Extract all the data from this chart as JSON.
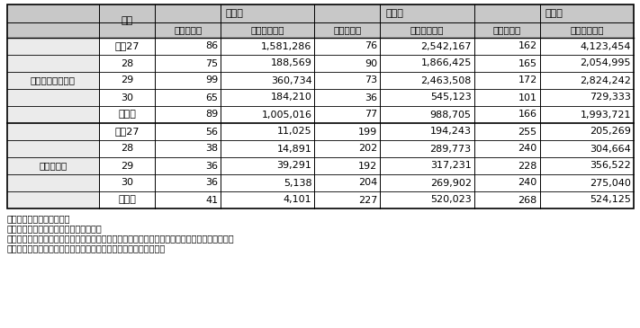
{
  "group1_label": "組織的犯罪処罰法",
  "group2_label": "麻薬特例法",
  "header1_noshuu": "没　収",
  "header1_tsuicho": "追　徴",
  "header1_sosuu": "総　数",
  "header_nenji": "年次",
  "subheader_jinuin": "人員（人）",
  "subheader_kingaku": "金額（千円）",
  "rows": [
    [
      "平成27",
      "86",
      "1,581,286",
      "76",
      "2,542,167",
      "162",
      "4,123,454"
    ],
    [
      "28",
      "75",
      "188,569",
      "90",
      "1,866,425",
      "165",
      "2,054,995"
    ],
    [
      "29",
      "99",
      "360,734",
      "73",
      "2,463,508",
      "172",
      "2,824,242"
    ],
    [
      "30",
      "65",
      "184,210",
      "36",
      "545,123",
      "101",
      "729,333"
    ],
    [
      "令和元",
      "89",
      "1,005,016",
      "77",
      "988,705",
      "166",
      "1,993,721"
    ],
    [
      "平成27",
      "56",
      "11,025",
      "199",
      "194,243",
      "255",
      "205,269"
    ],
    [
      "28",
      "38",
      "14,891",
      "202",
      "289,773",
      "240",
      "304,664"
    ],
    [
      "29",
      "36",
      "39,291",
      "192",
      "317,231",
      "228",
      "356,522"
    ],
    [
      "30",
      "36",
      "5,138",
      "204",
      "269,902",
      "240",
      "275,040"
    ],
    [
      "令和元",
      "41",
      "4,101",
      "227",
      "520,023",
      "268",
      "524,125"
    ]
  ],
  "notes": [
    "注１：法務省資料による。",
    "　２：金額は、千円未満切捨てである。",
    "　３：共犯者に重複して言い渡された没収・追徴は、重複部分を控除した金額を計上している。",
    "　４：外国通貨は、判決日現在の為替レートで日本円に換算した。"
  ],
  "header_bg": "#c8c8c8",
  "group_label_bg": "#ebebeb",
  "white": "#ffffff",
  "border_color": "#000000",
  "note_fontsize": 7.0,
  "header_fontsize": 8.0,
  "subheader_fontsize": 7.5,
  "cell_fontsize": 8.0,
  "group_label_fontsize": 7.5
}
